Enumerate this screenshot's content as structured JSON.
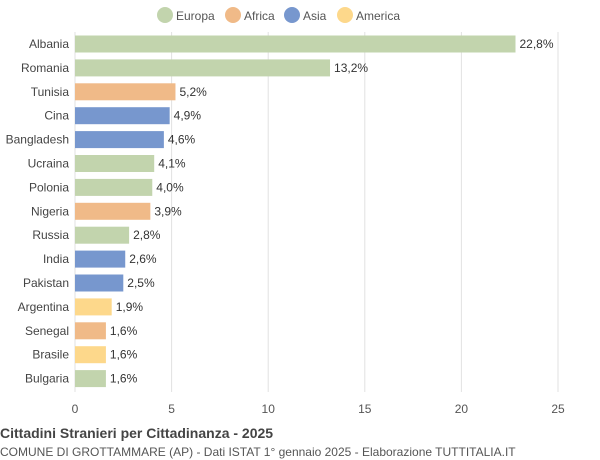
{
  "chart_data": {
    "type": "bar",
    "orientation": "horizontal",
    "title": "Cittadini Stranieri per Cittadinanza - 2025",
    "subtitle": "COMUNE DI GROTTAMMARE (AP) - Dati ISTAT 1° gennaio 2025 - Elaborazione TUTTITALIA.IT",
    "xlim": [
      0,
      25
    ],
    "xticks": [
      0,
      5,
      10,
      15,
      20,
      25
    ],
    "grid": true,
    "legend_position": "top",
    "legend": [
      {
        "name": "Europa",
        "color": "#c2d4ad"
      },
      {
        "name": "Africa",
        "color": "#f0ba88"
      },
      {
        "name": "Asia",
        "color": "#7797ce"
      },
      {
        "name": "America",
        "color": "#fdd88b"
      }
    ],
    "categories": [
      "Albania",
      "Romania",
      "Tunisia",
      "Cina",
      "Bangladesh",
      "Ucraina",
      "Polonia",
      "Nigeria",
      "Russia",
      "India",
      "Pakistan",
      "Argentina",
      "Senegal",
      "Brasile",
      "Bulgaria"
    ],
    "values": [
      22.8,
      13.2,
      5.2,
      4.9,
      4.6,
      4.1,
      4.0,
      3.9,
      2.8,
      2.6,
      2.5,
      1.9,
      1.6,
      1.6,
      1.6
    ],
    "value_labels": [
      "22,8%",
      "13,2%",
      "5,2%",
      "4,9%",
      "4,6%",
      "4,1%",
      "4,0%",
      "3,9%",
      "2,8%",
      "2,6%",
      "2,5%",
      "1,9%",
      "1,6%",
      "1,6%",
      "1,6%"
    ],
    "groups": [
      "Europa",
      "Europa",
      "Africa",
      "Asia",
      "Asia",
      "Europa",
      "Europa",
      "Africa",
      "Europa",
      "Asia",
      "Asia",
      "America",
      "Africa",
      "America",
      "Europa"
    ]
  }
}
